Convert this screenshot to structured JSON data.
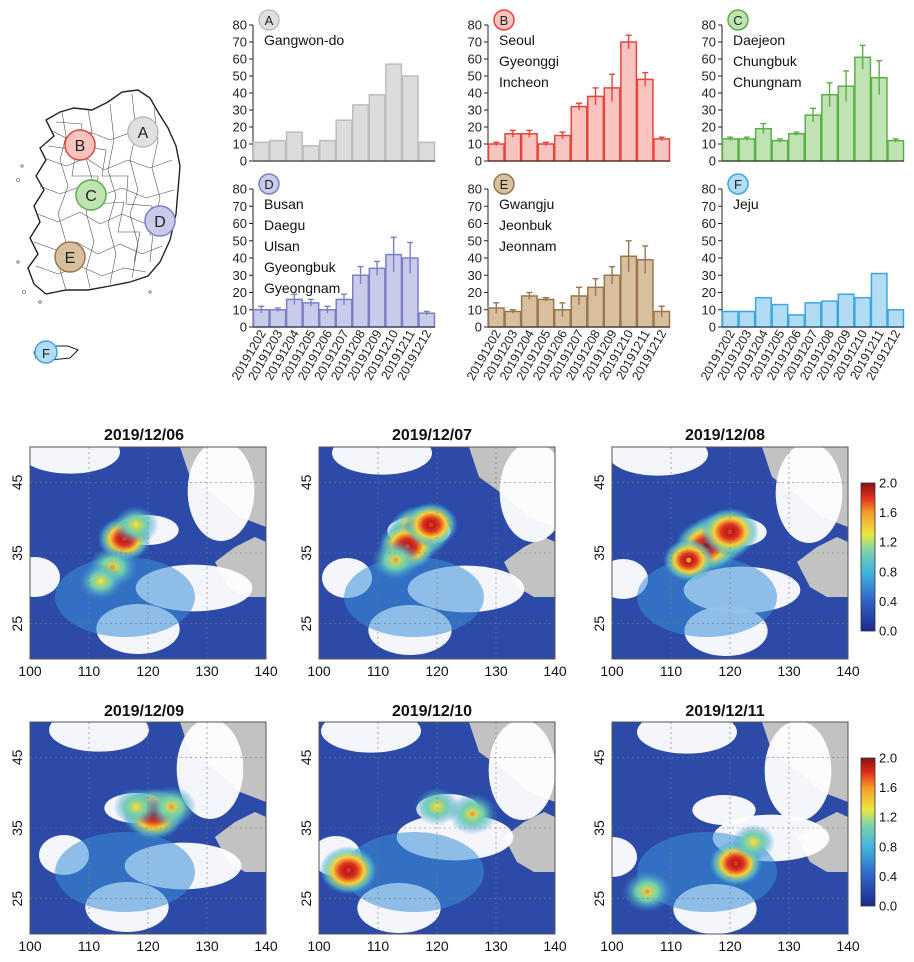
{
  "chart_data": [
    {
      "type": "bar",
      "panel": "A",
      "regions": [
        "Gangwon-do"
      ],
      "color": "#bdbdbd",
      "fill": "#dcdcdc",
      "error_bars": false,
      "categories": [
        "20191202",
        "20191203",
        "20191204",
        "20191205",
        "20191206",
        "20191207",
        "20191208",
        "20191209",
        "20191210",
        "20191211",
        "20191212"
      ],
      "values": [
        11,
        12,
        17,
        9,
        12,
        24,
        33,
        39,
        57,
        50,
        11
      ],
      "errors": [
        0,
        0,
        0,
        0,
        0,
        0,
        0,
        0,
        0,
        0,
        0
      ],
      "ylim": [
        0,
        80
      ],
      "yticks": [
        0,
        10,
        20,
        30,
        40,
        50,
        60,
        70,
        80
      ]
    },
    {
      "type": "bar",
      "panel": "B",
      "regions": [
        "Seoul",
        "Gyeonggi",
        "Incheon"
      ],
      "color": "#e2453b",
      "fill": "#f9c3c0",
      "error_bars": true,
      "categories": [
        "20191202",
        "20191203",
        "20191204",
        "20191205",
        "20191206",
        "20191207",
        "20191208",
        "20191209",
        "20191210",
        "20191211",
        "20191212"
      ],
      "values": [
        10,
        16,
        16,
        10,
        15,
        32,
        38,
        43,
        70,
        48,
        13
      ],
      "errors": [
        1,
        2,
        2,
        1,
        2,
        2,
        5,
        8,
        4,
        4,
        1
      ],
      "ylim": [
        0,
        80
      ],
      "yticks": [
        0,
        10,
        20,
        30,
        40,
        50,
        60,
        70,
        80
      ]
    },
    {
      "type": "bar",
      "panel": "C",
      "regions": [
        "Daejeon",
        "Chungbuk",
        "Chungnam"
      ],
      "color": "#5cae48",
      "fill": "#bfe3b3",
      "error_bars": true,
      "categories": [
        "20191202",
        "20191203",
        "20191204",
        "20191205",
        "20191206",
        "20191207",
        "20191208",
        "20191209",
        "20191210",
        "20191211",
        "20191212"
      ],
      "values": [
        13,
        13,
        19,
        12,
        16,
        27,
        39,
        44,
        61,
        49,
        12
      ],
      "errors": [
        1,
        1,
        3,
        1,
        1,
        4,
        7,
        9,
        7,
        10,
        1
      ],
      "ylim": [
        0,
        80
      ],
      "yticks": [
        0,
        10,
        20,
        30,
        40,
        50,
        60,
        70,
        80
      ]
    },
    {
      "type": "bar",
      "panel": "D",
      "regions": [
        "Busan",
        "Daegu",
        "Ulsan",
        "Gyeongbuk",
        "Gyeongnam"
      ],
      "color": "#7b80c4",
      "fill": "#c8cbe9",
      "error_bars": true,
      "categories": [
        "20191202",
        "20191203",
        "20191204",
        "20191205",
        "20191206",
        "20191207",
        "20191208",
        "20191209",
        "20191210",
        "20191211",
        "20191212"
      ],
      "values": [
        10,
        10,
        16,
        14,
        10,
        16,
        30,
        34,
        42,
        40,
        8
      ],
      "errors": [
        2,
        1,
        3,
        2,
        2,
        3,
        5,
        4,
        10,
        9,
        1
      ],
      "ylim": [
        0,
        80
      ],
      "yticks": [
        0,
        10,
        20,
        30,
        40,
        50,
        60,
        70,
        80
      ]
    },
    {
      "type": "bar",
      "panel": "E",
      "regions": [
        "Gwangju",
        "Jeonbuk",
        "Jeonnam"
      ],
      "color": "#9a7650",
      "fill": "#d8bf9e",
      "error_bars": true,
      "categories": [
        "20191202",
        "20191203",
        "20191204",
        "20191205",
        "20191206",
        "20191207",
        "20191208",
        "20191209",
        "20191210",
        "20191211",
        "20191212"
      ],
      "values": [
        11,
        9,
        18,
        16,
        10,
        18,
        23,
        30,
        41,
        39,
        9
      ],
      "errors": [
        3,
        1,
        2,
        1,
        4,
        5,
        5,
        5,
        9,
        8,
        3
      ],
      "ylim": [
        0,
        80
      ],
      "yticks": [
        0,
        10,
        20,
        30,
        40,
        50,
        60,
        70,
        80
      ]
    },
    {
      "type": "bar",
      "panel": "F",
      "regions": [
        "Jeju"
      ],
      "color": "#3aa7e0",
      "fill": "#b2dcf4",
      "error_bars": false,
      "categories": [
        "20191202",
        "20191203",
        "20191204",
        "20191205",
        "20191206",
        "20191207",
        "20191208",
        "20191209",
        "20191210",
        "20191211",
        "20191212"
      ],
      "values": [
        9,
        9,
        17,
        13,
        7,
        14,
        15,
        19,
        17,
        31,
        10
      ],
      "errors": [
        0,
        0,
        0,
        0,
        0,
        0,
        0,
        0,
        0,
        0,
        0
      ],
      "ylim": [
        0,
        80
      ],
      "yticks": [
        0,
        10,
        20,
        30,
        40,
        50,
        60,
        70,
        80
      ]
    },
    {
      "type": "heatmap",
      "title": "2019/12/06",
      "x_ticks": [
        100,
        110,
        120,
        130,
        140
      ],
      "y_ticks": [
        25,
        35,
        45
      ],
      "colorbar": false,
      "hotspots": [
        {
          "lon": 116,
          "lat": 37,
          "v": 1.6
        },
        {
          "lon": 114,
          "lat": 33,
          "v": 1.4
        },
        {
          "lon": 118,
          "lat": 39,
          "v": 1.2
        },
        {
          "lon": 112,
          "lat": 31,
          "v": 1.1
        }
      ]
    },
    {
      "type": "heatmap",
      "title": "2019/12/07",
      "x_ticks": [
        100,
        110,
        120,
        130,
        140
      ],
      "y_ticks": [
        25,
        35,
        45
      ],
      "colorbar": false,
      "hotspots": [
        {
          "lon": 117,
          "lat": 38,
          "v": 2.0
        },
        {
          "lon": 115,
          "lat": 36,
          "v": 1.8
        },
        {
          "lon": 119,
          "lat": 39,
          "v": 1.6
        },
        {
          "lon": 113,
          "lat": 34,
          "v": 1.3
        }
      ]
    },
    {
      "type": "heatmap",
      "title": "2019/12/08",
      "x_ticks": [
        100,
        110,
        120,
        130,
        140
      ],
      "y_ticks": [
        25,
        35,
        45
      ],
      "colorbar": true,
      "colorbar_ticks": [
        "0.0",
        "0.4",
        "0.8",
        "1.2",
        "1.6",
        "2.0"
      ],
      "hotspots": [
        {
          "lon": 118,
          "lat": 37,
          "v": 2.0
        },
        {
          "lon": 116,
          "lat": 36,
          "v": 2.0
        },
        {
          "lon": 120,
          "lat": 38,
          "v": 1.8
        },
        {
          "lon": 113,
          "lat": 34,
          "v": 1.5
        }
      ]
    },
    {
      "type": "heatmap",
      "title": "2019/12/09",
      "x_ticks": [
        100,
        110,
        120,
        130,
        140
      ],
      "y_ticks": [
        25,
        35,
        45
      ],
      "colorbar": false,
      "hotspots": [
        {
          "lon": 121,
          "lat": 37,
          "v": 2.0
        },
        {
          "lon": 124,
          "lat": 38,
          "v": 1.4
        },
        {
          "lon": 118,
          "lat": 38,
          "v": 1.2
        }
      ]
    },
    {
      "type": "heatmap",
      "title": "2019/12/10",
      "x_ticks": [
        100,
        110,
        120,
        130,
        140
      ],
      "y_ticks": [
        25,
        35,
        45
      ],
      "colorbar": false,
      "hotspots": [
        {
          "lon": 105,
          "lat": 29,
          "v": 1.8
        },
        {
          "lon": 126,
          "lat": 37,
          "v": 1.4
        },
        {
          "lon": 120,
          "lat": 38,
          "v": 1.2
        }
      ]
    },
    {
      "type": "heatmap",
      "title": "2019/12/11",
      "x_ticks": [
        100,
        110,
        120,
        130,
        140
      ],
      "y_ticks": [
        25,
        35,
        45
      ],
      "colorbar": true,
      "colorbar_ticks": [
        "0.0",
        "0.4",
        "0.8",
        "1.2",
        "1.6",
        "2.0"
      ],
      "hotspots": [
        {
          "lon": 121,
          "lat": 30,
          "v": 1.6
        },
        {
          "lon": 106,
          "lat": 26,
          "v": 1.4
        },
        {
          "lon": 124,
          "lat": 33,
          "v": 1.1
        }
      ]
    }
  ],
  "map_labels": [
    {
      "letter": "A",
      "color": "#bdbdbd",
      "fill": "#e0e0e0"
    },
    {
      "letter": "B",
      "color": "#e2453b",
      "fill": "#f9c3c0"
    },
    {
      "letter": "C",
      "color": "#5cae48",
      "fill": "#bfe3b3"
    },
    {
      "letter": "D",
      "color": "#7b80c4",
      "fill": "#c8cbe9"
    },
    {
      "letter": "E",
      "color": "#9a7650",
      "fill": "#d8bf9e"
    },
    {
      "letter": "F",
      "color": "#3aa7e0",
      "fill": "#b2dcf4"
    }
  ]
}
